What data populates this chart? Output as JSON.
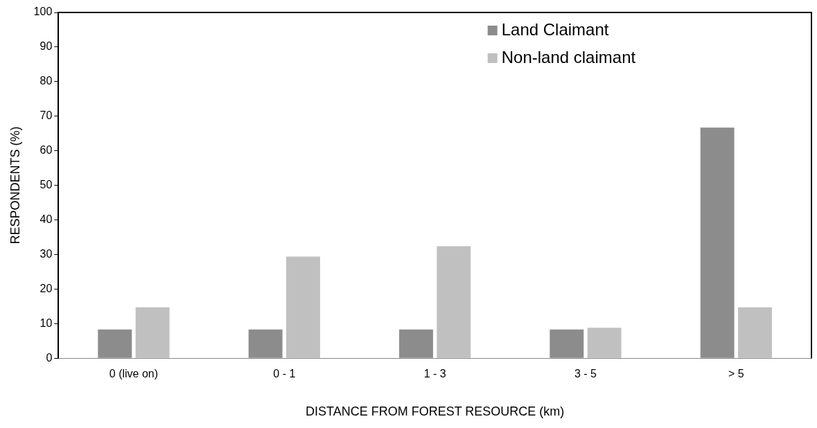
{
  "chart_data": {
    "type": "bar",
    "xlabel": "DISTANCE FROM FOREST RESOURCE (km)",
    "ylabel": "RESPONDENTS (%)",
    "categories": [
      "0 (live on)",
      "0 - 1",
      "1 - 3",
      "3 - 5",
      "> 5"
    ],
    "series": [
      {
        "name": "Land Claimant",
        "color": "#8c8c8c",
        "values": [
          8.3,
          8.3,
          8.3,
          8.3,
          66.7
        ]
      },
      {
        "name": "Non-land claimant",
        "color": "#c0c0c0",
        "values": [
          14.7,
          29.4,
          32.4,
          8.8,
          14.7
        ]
      }
    ],
    "ylim": [
      0,
      100
    ],
    "yticks": [
      0,
      10,
      20,
      30,
      40,
      50,
      60,
      70,
      80,
      90,
      100
    ],
    "grid": false,
    "legend": "top right"
  }
}
